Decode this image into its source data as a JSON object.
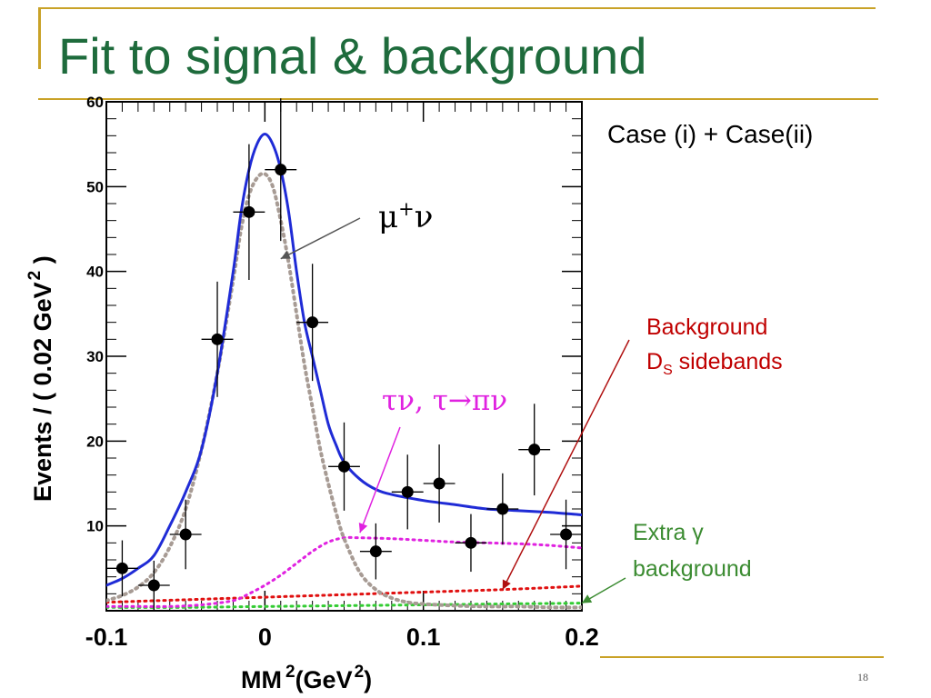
{
  "slide": {
    "title": "Fit to signal & background",
    "page_number": "18",
    "case_label": "Case (i) + Case(ii)",
    "bg_label_line1": "Background",
    "bg_label_line2_D": "D",
    "bg_label_line2_sub": "S",
    "bg_label_line2_rest": " sidebands",
    "extra_label_line1": "Extra γ",
    "extra_label_line2": "background",
    "mu_annotation_base": "μ",
    "mu_annotation_sup": "+",
    "mu_annotation_tail": "ν",
    "tau_annotation": "τν, τ→πν"
  },
  "colors": {
    "title": "#1e6b3c",
    "decor_lines": "#c9a227",
    "total_fit": "#1f2bd6",
    "mu_nu": "#a79b94",
    "tau_nu": "#e022e0",
    "ds_sideband": "#e01010",
    "extra_gamma": "#33cc33",
    "data": "#000000",
    "bg_label": "#c00000",
    "extra_label": "#3c8c32"
  },
  "chart_data": {
    "type": "scatter",
    "xlabel_main": "MM",
    "xlabel_sup": "2",
    "xlabel_unit": "(GeV",
    "xlabel_unit_sup": "2",
    "xlabel_close": ")",
    "ylabel": "Events / ( 0.02 GeV",
    "ylabel_sup": "2",
    "ylabel_close": " )",
    "xlim": [
      -0.1,
      0.2
    ],
    "ylim": [
      0,
      60
    ],
    "x_ticks": [
      -0.1,
      0,
      0.1,
      0.2
    ],
    "x_tick_labels": [
      "-0.1",
      "0",
      "0.1",
      "0.2"
    ],
    "y_ticks": [
      10,
      20,
      30,
      40,
      50,
      60
    ],
    "y_tick_labels": [
      "10",
      "20",
      "30",
      "40",
      "50",
      "60"
    ],
    "data_points": {
      "x": [
        -0.09,
        -0.07,
        -0.05,
        -0.03,
        -0.01,
        0.01,
        0.03,
        0.05,
        0.07,
        0.09,
        0.11,
        0.13,
        0.15,
        0.17,
        0.19
      ],
      "y": [
        5,
        3,
        9,
        32,
        47,
        52,
        34,
        17,
        7,
        14,
        15,
        8,
        12,
        19,
        9
      ],
      "y_err": [
        3.3,
        2.9,
        4.1,
        6.8,
        8,
        8.4,
        6.9,
        5.2,
        3.3,
        4.4,
        4.6,
        3.4,
        4.2,
        5.4,
        4.1
      ],
      "x_err": 0.01
    },
    "series": [
      {
        "key": "total_fit",
        "style": "solid",
        "x": [
          -0.1,
          -0.09,
          -0.08,
          -0.07,
          -0.06,
          -0.05,
          -0.04,
          -0.03,
          -0.02,
          -0.015,
          -0.01,
          -0.005,
          0,
          0.005,
          0.01,
          0.015,
          0.02,
          0.025,
          0.03,
          0.035,
          0.04,
          0.045,
          0.05,
          0.06,
          0.07,
          0.08,
          0.1,
          0.12,
          0.14,
          0.16,
          0.18,
          0.2
        ],
        "y": [
          3,
          3.8,
          5,
          6.5,
          10,
          14,
          19,
          28,
          40,
          47,
          52,
          55,
          56.2,
          55,
          52,
          47,
          40,
          34,
          30,
          26,
          22,
          19.5,
          17.5,
          15.5,
          14.3,
          13.7,
          13,
          12.5,
          12,
          11.8,
          11.6,
          11.3
        ]
      },
      {
        "key": "mu_nu",
        "style": "dotted",
        "x": [
          -0.1,
          -0.09,
          -0.08,
          -0.07,
          -0.06,
          -0.05,
          -0.04,
          -0.03,
          -0.02,
          -0.015,
          -0.01,
          -0.005,
          0,
          0.005,
          0.01,
          0.015,
          0.02,
          0.025,
          0.03,
          0.035,
          0.04,
          0.045,
          0.05,
          0.06,
          0.07,
          0.08,
          0.09,
          0.1,
          0.12,
          0.14,
          0.16,
          0.18,
          0.2
        ],
        "y": [
          1.2,
          1.8,
          2.8,
          4.5,
          7.5,
          12,
          19,
          28,
          39,
          45,
          49,
          51,
          51.5,
          50,
          46,
          41,
          35,
          29,
          24,
          19,
          15,
          11.5,
          8.5,
          4.5,
          2.5,
          1.5,
          1,
          0.8,
          0.6,
          0.5,
          0.5,
          0.4,
          0.4
        ]
      },
      {
        "key": "tau_nu",
        "style": "dotted",
        "x": [
          -0.1,
          -0.08,
          -0.06,
          -0.04,
          -0.02,
          -0.01,
          0,
          0.01,
          0.02,
          0.03,
          0.04,
          0.05,
          0.06,
          0.08,
          0.1,
          0.12,
          0.14,
          0.16,
          0.18,
          0.2
        ],
        "y": [
          0.5,
          0.5,
          0.5,
          0.7,
          1.2,
          2,
          3,
          4.2,
          5.6,
          7,
          8.1,
          8.6,
          8.6,
          8.5,
          8.3,
          8.1,
          8,
          7.9,
          7.7,
          7.4
        ]
      },
      {
        "key": "ds_sideband",
        "style": "dotted",
        "x": [
          -0.1,
          -0.05,
          0,
          0.05,
          0.1,
          0.15,
          0.2
        ],
        "y": [
          1.0,
          1.3,
          1.6,
          1.9,
          2.2,
          2.5,
          2.9
        ]
      },
      {
        "key": "extra_gamma",
        "style": "dotted",
        "x": [
          -0.1,
          -0.05,
          0,
          0.05,
          0.1,
          0.15,
          0.2
        ],
        "y": [
          0.4,
          0.4,
          0.5,
          0.6,
          0.7,
          0.8,
          0.9
        ]
      }
    ],
    "annotation_arrows": [
      {
        "key": "mu_nu",
        "to": [
          0.01,
          41.5
        ]
      },
      {
        "key": "tau_nu",
        "to": [
          0.06,
          9.2
        ]
      },
      {
        "key": "ds_sideband",
        "to": [
          0.15,
          2.5
        ]
      },
      {
        "key": "extra_gamma",
        "to": [
          0.2,
          0.9
        ]
      }
    ]
  }
}
